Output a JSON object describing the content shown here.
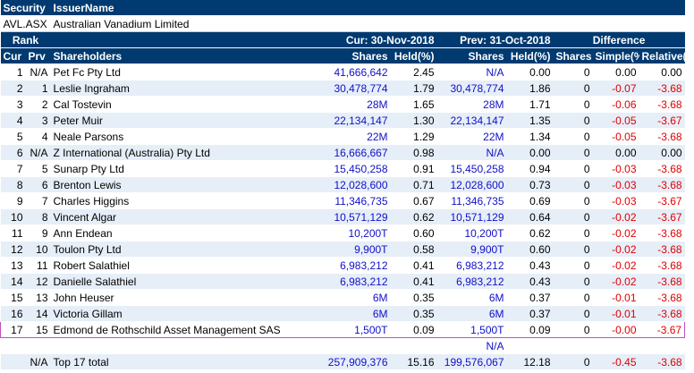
{
  "header": {
    "security_label": "Security",
    "issuer_label": "IssuerName"
  },
  "security": {
    "code": "AVL.ASX",
    "name": "Australian Vanadium Limited"
  },
  "groups": {
    "rank": "Rank",
    "current": "Cur: 30-Nov-2018",
    "previous": "Prev: 31-Oct-2018",
    "difference": "Difference"
  },
  "columns": {
    "cur": "Cur",
    "prv": "Prv",
    "shareholders": "Shareholders",
    "shares_cur": "Shares",
    "held_cur": "Held(%)",
    "shares_prev": "Shares",
    "held_prev": "Held(%)",
    "diff_shares": "Shares",
    "simple": "Simple(%)",
    "relative": "Relative(%)"
  },
  "rows": [
    {
      "cur": "1",
      "prv": "N/A",
      "name": "Pet Fc Pty Ltd",
      "shares": "41,666,642",
      "held": "2.45",
      "pshares": "N/A",
      "pheld": "0.00",
      "dshares": "0",
      "simple": "0.00",
      "relative": "0.00"
    },
    {
      "cur": "2",
      "prv": "1",
      "name": "Leslie Ingraham",
      "shares": "30,478,774",
      "held": "1.79",
      "pshares": "30,478,774",
      "pheld": "1.86",
      "dshares": "0",
      "simple": "-0.07",
      "relative": "-3.68"
    },
    {
      "cur": "3",
      "prv": "2",
      "name": "Cal Tostevin",
      "shares": "28M",
      "held": "1.65",
      "pshares": "28M",
      "pheld": "1.71",
      "dshares": "0",
      "simple": "-0.06",
      "relative": "-3.68"
    },
    {
      "cur": "4",
      "prv": "3",
      "name": "Peter Muir",
      "shares": "22,134,147",
      "held": "1.30",
      "pshares": "22,134,147",
      "pheld": "1.35",
      "dshares": "0",
      "simple": "-0.05",
      "relative": "-3.67"
    },
    {
      "cur": "5",
      "prv": "4",
      "name": "Neale Parsons",
      "shares": "22M",
      "held": "1.29",
      "pshares": "22M",
      "pheld": "1.34",
      "dshares": "0",
      "simple": "-0.05",
      "relative": "-3.68"
    },
    {
      "cur": "6",
      "prv": "N/A",
      "name": "Z International (Australia) Pty Ltd",
      "shares": "16,666,667",
      "held": "0.98",
      "pshares": "N/A",
      "pheld": "0.00",
      "dshares": "0",
      "simple": "0.00",
      "relative": "0.00"
    },
    {
      "cur": "7",
      "prv": "5",
      "name": "Sunarp Pty Ltd",
      "shares": "15,450,258",
      "held": "0.91",
      "pshares": "15,450,258",
      "pheld": "0.94",
      "dshares": "0",
      "simple": "-0.03",
      "relative": "-3.68"
    },
    {
      "cur": "8",
      "prv": "6",
      "name": "Brenton Lewis",
      "shares": "12,028,600",
      "held": "0.71",
      "pshares": "12,028,600",
      "pheld": "0.73",
      "dshares": "0",
      "simple": "-0.03",
      "relative": "-3.68"
    },
    {
      "cur": "9",
      "prv": "7",
      "name": "Charles Higgins",
      "shares": "11,346,735",
      "held": "0.67",
      "pshares": "11,346,735",
      "pheld": "0.69",
      "dshares": "0",
      "simple": "-0.03",
      "relative": "-3.67"
    },
    {
      "cur": "10",
      "prv": "8",
      "name": "Vincent Algar",
      "shares": "10,571,129",
      "held": "0.62",
      "pshares": "10,571,129",
      "pheld": "0.64",
      "dshares": "0",
      "simple": "-0.02",
      "relative": "-3.67"
    },
    {
      "cur": "11",
      "prv": "9",
      "name": "Ann Endean",
      "shares": "10,200T",
      "held": "0.60",
      "pshares": "10,200T",
      "pheld": "0.62",
      "dshares": "0",
      "simple": "-0.02",
      "relative": "-3.68"
    },
    {
      "cur": "12",
      "prv": "10",
      "name": "Toulon Pty Ltd",
      "shares": "9,900T",
      "held": "0.58",
      "pshares": "9,900T",
      "pheld": "0.60",
      "dshares": "0",
      "simple": "-0.02",
      "relative": "-3.68"
    },
    {
      "cur": "13",
      "prv": "11",
      "name": "Robert Salathiel",
      "shares": "6,983,212",
      "held": "0.41",
      "pshares": "6,983,212",
      "pheld": "0.43",
      "dshares": "0",
      "simple": "-0.02",
      "relative": "-3.68"
    },
    {
      "cur": "14",
      "prv": "12",
      "name": "Danielle Salathiel",
      "shares": "6,983,212",
      "held": "0.41",
      "pshares": "6,983,212",
      "pheld": "0.43",
      "dshares": "0",
      "simple": "-0.02",
      "relative": "-3.68"
    },
    {
      "cur": "15",
      "prv": "13",
      "name": "John Heuser",
      "shares": "6M",
      "held": "0.35",
      "pshares": "6M",
      "pheld": "0.37",
      "dshares": "0",
      "simple": "-0.01",
      "relative": "-3.68"
    },
    {
      "cur": "16",
      "prv": "14",
      "name": "Victoria Gillam",
      "shares": "6M",
      "held": "0.35",
      "pshares": "6M",
      "pheld": "0.37",
      "dshares": "0",
      "simple": "-0.01",
      "relative": "-3.68"
    },
    {
      "cur": "17",
      "prv": "15",
      "name": "Edmond de Rothschild Asset Management SAS",
      "shares": "1,500T",
      "held": "0.09",
      "pshares": "1,500T",
      "pheld": "0.09",
      "dshares": "0",
      "simple": "-0.00",
      "relative": "-3.67"
    }
  ],
  "extra_row": {
    "pshares": "N/A"
  },
  "total": {
    "prv": "N/A",
    "name": "Top 17 total",
    "shares": "257,909,376",
    "held": "15.16",
    "pshares": "199,576,067",
    "pheld": "12.18",
    "dshares": "0",
    "simple": "-0.45",
    "relative": "-3.68"
  },
  "colors": {
    "header_bg": "#003a70",
    "value_blue": "#1010c8",
    "value_red": "#e00000",
    "highlight_border": "#c050c0"
  }
}
